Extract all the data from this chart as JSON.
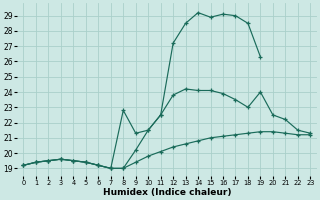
{
  "xlabel": "Humidex (Indice chaleur)",
  "xlim": [
    -0.5,
    23.5
  ],
  "ylim": [
    18.5,
    29.8
  ],
  "xticks": [
    0,
    1,
    2,
    3,
    4,
    5,
    6,
    7,
    8,
    9,
    10,
    11,
    12,
    13,
    14,
    15,
    16,
    17,
    18,
    19,
    20,
    21,
    22,
    23
  ],
  "yticks": [
    19,
    20,
    21,
    22,
    23,
    24,
    25,
    26,
    27,
    28,
    29
  ],
  "bg_color": "#cde8e4",
  "grid_color": "#aad0ca",
  "line_color": "#1a6b5a",
  "line1_x": [
    0,
    1,
    2,
    3,
    4,
    5,
    6,
    7,
    8,
    9,
    10,
    11,
    12,
    13,
    14,
    15,
    16,
    17,
    18,
    19,
    20,
    21,
    22,
    23
  ],
  "line1_y": [
    19.2,
    19.4,
    19.5,
    19.6,
    19.5,
    19.4,
    19.2,
    19.0,
    19.0,
    20.2,
    21.5,
    22.5,
    27.2,
    28.5,
    29.2,
    28.9,
    29.1,
    29.0,
    28.5,
    26.3,
    null,
    null,
    null,
    null
  ],
  "line2_x": [
    0,
    1,
    2,
    3,
    4,
    5,
    6,
    7,
    8,
    9,
    10,
    11,
    12,
    13,
    14,
    15,
    16,
    17,
    18,
    19,
    20,
    21,
    22,
    23
  ],
  "line2_y": [
    19.2,
    19.4,
    19.5,
    19.6,
    19.5,
    19.4,
    19.2,
    19.0,
    22.8,
    21.3,
    21.5,
    22.5,
    23.8,
    24.2,
    24.1,
    24.1,
    23.9,
    23.5,
    23.0,
    24.0,
    22.5,
    22.2,
    21.5,
    21.3
  ],
  "line3_x": [
    0,
    1,
    2,
    3,
    4,
    5,
    6,
    7,
    8,
    9,
    10,
    11,
    12,
    13,
    14,
    15,
    16,
    17,
    18,
    19,
    20,
    21,
    22,
    23
  ],
  "line3_y": [
    19.2,
    19.4,
    19.5,
    19.6,
    19.5,
    19.4,
    19.2,
    19.0,
    19.0,
    19.4,
    19.8,
    20.1,
    20.4,
    20.6,
    20.8,
    21.0,
    21.1,
    21.2,
    21.3,
    21.4,
    21.4,
    21.3,
    21.2,
    21.2
  ],
  "line1_x_trimmed": [
    0,
    1,
    2,
    3,
    4,
    5,
    6,
    7,
    8,
    9,
    10,
    11,
    12,
    13,
    14,
    15,
    16,
    17,
    18,
    19
  ],
  "line1_y_trimmed": [
    19.2,
    19.4,
    19.5,
    19.6,
    19.5,
    19.4,
    19.2,
    19.0,
    19.0,
    20.2,
    21.5,
    22.5,
    27.2,
    28.5,
    29.2,
    28.9,
    29.1,
    29.0,
    28.5,
    26.3
  ]
}
